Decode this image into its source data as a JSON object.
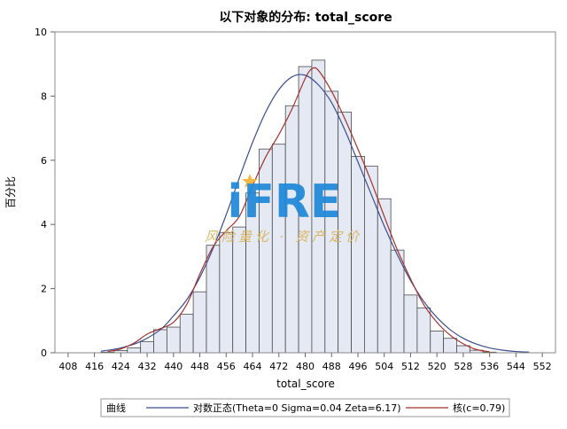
{
  "chart_data": {
    "type": "bar",
    "title": "以下对象的分布: total_score",
    "xlabel": "total_score",
    "ylabel": "百分比",
    "xlim": [
      404,
      556
    ],
    "ylim": [
      0,
      10
    ],
    "x_ticks": [
      408,
      416,
      424,
      432,
      440,
      448,
      456,
      464,
      472,
      480,
      488,
      496,
      504,
      512,
      520,
      528,
      536,
      544,
      552
    ],
    "y_ticks": [
      0,
      2,
      4,
      6,
      8,
      10
    ],
    "bin_width": 4,
    "bin_centers": [
      420,
      424,
      428,
      432,
      436,
      440,
      444,
      448,
      452,
      456,
      460,
      464,
      468,
      472,
      476,
      480,
      484,
      488,
      492,
      496,
      500,
      504,
      508,
      512,
      516,
      520,
      524,
      528,
      532,
      536
    ],
    "values": [
      0.02,
      0.07,
      0.15,
      0.35,
      0.72,
      0.8,
      1.2,
      1.9,
      3.35,
      3.75,
      3.92,
      4.98,
      6.35,
      6.5,
      7.7,
      8.92,
      9.12,
      8.15,
      7.5,
      6.12,
      5.82,
      4.8,
      3.2,
      1.8,
      1.4,
      0.68,
      0.45,
      0.22,
      0.08,
      0.02
    ],
    "series": [
      {
        "name": "对数正态(Theta=0 Sigma=0.04 Zeta=6.17)",
        "color": "#3b4d8f",
        "x": [
          418,
          424,
          430,
          436,
          440,
          444,
          448,
          452,
          456,
          460,
          464,
          468,
          472,
          476,
          480,
          484,
          488,
          492,
          496,
          500,
          504,
          508,
          512,
          516,
          520,
          524,
          528,
          532,
          536,
          540,
          544,
          548
        ],
        "y": [
          0.05,
          0.15,
          0.35,
          0.72,
          1.15,
          1.65,
          2.35,
          3.25,
          4.3,
          5.45,
          6.55,
          7.5,
          8.2,
          8.6,
          8.65,
          8.35,
          7.8,
          6.95,
          5.95,
          4.95,
          3.95,
          3.05,
          2.25,
          1.6,
          1.1,
          0.72,
          0.45,
          0.27,
          0.15,
          0.08,
          0.04,
          0.02
        ]
      },
      {
        "name": "核(c=0.79)",
        "color": "#a3322d",
        "x": [
          420,
          424,
          428,
          432,
          436,
          440,
          444,
          448,
          452,
          456,
          460,
          464,
          468,
          472,
          476,
          480,
          482,
          484,
          488,
          492,
          496,
          500,
          504,
          508,
          512,
          516,
          520,
          524,
          528,
          532,
          536
        ],
        "y": [
          0.04,
          0.12,
          0.3,
          0.58,
          0.75,
          0.95,
          1.5,
          2.45,
          3.3,
          3.8,
          4.25,
          5.2,
          6.1,
          6.8,
          7.6,
          8.55,
          8.85,
          8.8,
          8.15,
          7.3,
          6.35,
          5.35,
          4.25,
          3.2,
          2.3,
          1.5,
          0.95,
          0.55,
          0.28,
          0.1,
          0.03
        ]
      }
    ],
    "bar_color": "#e5e9f3",
    "bar_edge": "#4a4a4a",
    "grid": false,
    "legend": {
      "title": "曲线",
      "entries": [
        "对数正态(Theta=0 Sigma=0.04 Zeta=6.17)",
        "核(c=0.79)"
      ],
      "placement": "bottom"
    }
  },
  "watermark": {
    "logo": "iFRE",
    "tagline": "风险量化 · 资产定价"
  }
}
